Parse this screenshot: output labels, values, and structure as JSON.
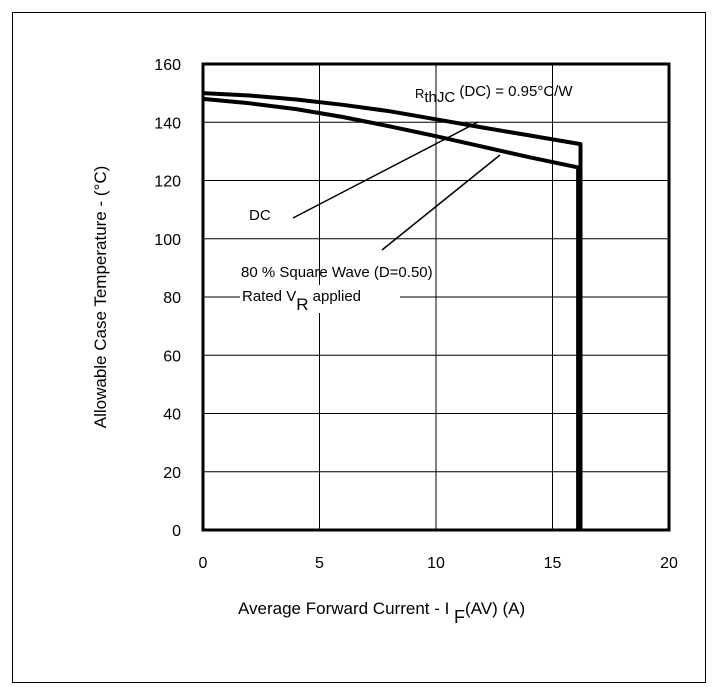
{
  "chart_data": {
    "type": "line",
    "xlabel": "Average Forward Current - I F(AV) (A)",
    "xlabel_parts": {
      "main": "Average Forward Current - I ",
      "sub": "F",
      "tail": "(AV) (A)"
    },
    "ylabel": "Allowable Case Temperature - (°C)",
    "xlim": [
      0,
      20
    ],
    "ylim": [
      0,
      160
    ],
    "x_ticks": [
      "0",
      "5",
      "10",
      "15",
      "20"
    ],
    "y_ticks": [
      "0",
      "20",
      "40",
      "60",
      "80",
      "100",
      "120",
      "140",
      "160"
    ],
    "grid": true,
    "series": [
      {
        "name": "DC",
        "x": [
          0,
          2,
          4,
          6,
          8,
          10,
          12,
          14,
          16.2,
          16.2
        ],
        "y": [
          150,
          149.2,
          147.8,
          146,
          143.8,
          141,
          138.2,
          135.5,
          132.5,
          0
        ]
      },
      {
        "name": "80 % Square Wave (D=0.50)",
        "x": [
          0,
          2,
          4,
          6,
          8,
          10,
          12,
          14,
          16.1,
          16.1
        ],
        "y": [
          148,
          146.5,
          144.5,
          141.8,
          138.6,
          135.2,
          131.6,
          128,
          124.5,
          0
        ]
      }
    ],
    "annotations": {
      "rth": {
        "main": "R",
        "sub": "thJC",
        "tail": " (DC) = 0.95°C/W"
      },
      "dc": "DC",
      "square_wave": "80 % Square Wave (D=0.50)",
      "rated": {
        "main": "Rated V",
        "sub": "R",
        "tail": " applied"
      }
    }
  }
}
